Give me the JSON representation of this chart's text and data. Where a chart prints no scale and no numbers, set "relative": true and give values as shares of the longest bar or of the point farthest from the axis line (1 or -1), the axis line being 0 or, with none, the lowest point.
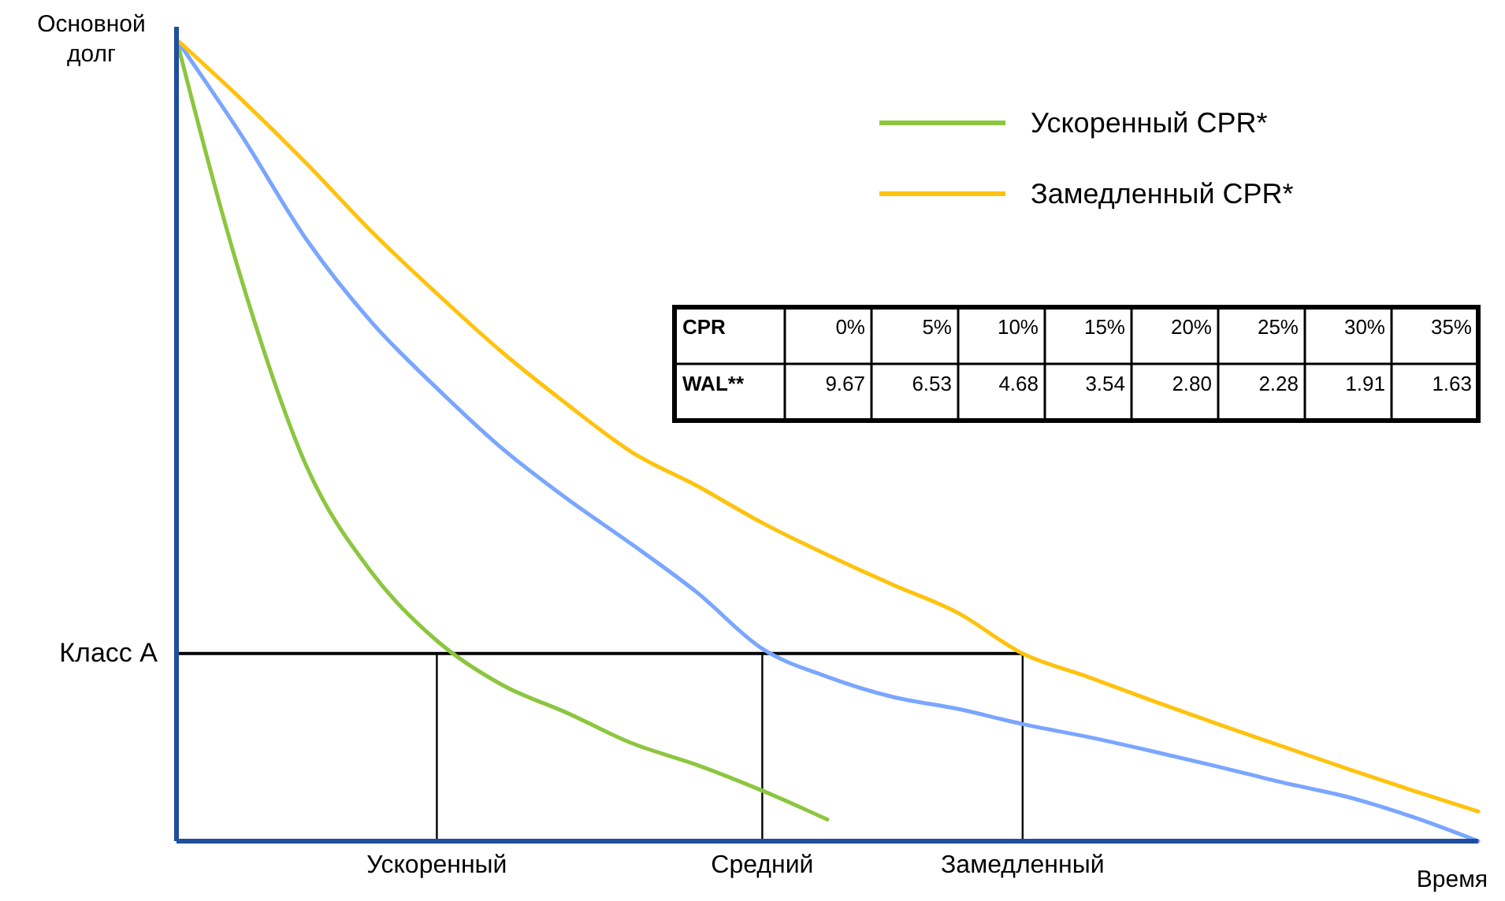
{
  "chart_data": {
    "type": "line",
    "relative": true,
    "xlabel": "Время",
    "ylabel": "Основной долг",
    "categories": [
      null,
      null,
      null,
      null,
      "Ускоренный",
      null,
      null,
      null,
      null,
      "Средний",
      null,
      null,
      null,
      "Замедленный",
      null,
      null,
      null,
      null,
      null,
      null,
      null
    ],
    "legend": "top right",
    "grid": false,
    "ref_lines": [
      {
        "axis": "y",
        "value": 0.234,
        "label": "Класс А",
        "color": "#000000"
      },
      {
        "axis": "x",
        "value": "Ускоренный",
        "color": "#000000"
      },
      {
        "axis": "x",
        "value": "Средний",
        "color": "#000000"
      },
      {
        "axis": "x",
        "value": "Замедленный",
        "color": "#000000"
      }
    ],
    "annotations": [
      "CPR",
      "0%",
      "5%",
      "10%",
      "15%",
      "20%",
      "25%",
      "30%",
      "35%",
      "WAL**",
      "9.67",
      "6.53",
      "4.68",
      "3.54",
      "2.80",
      "2.28",
      "1.91",
      "1.63"
    ],
    "series": [
      {
        "name": "Ускоренный CPR*",
        "color": "#8cc63f",
        "values": [
          1,
          0.7,
          0.467,
          0.335,
          0.25,
          0.195,
          0.16,
          0.122,
          0.095,
          0.063,
          0.027,
          null,
          null,
          null,
          null,
          null,
          null,
          null,
          null,
          null,
          null
        ]
      },
      {
        "color": "#7aa6ff",
        "values": [
          1,
          0.88,
          0.75,
          0.647,
          0.565,
          0.49,
          0.427,
          0.37,
          0.31,
          0.24,
          0.205,
          0.18,
          0.165,
          0.146,
          0.13,
          0.112,
          0.093,
          0.073,
          0.055,
          0.03,
          0
        ]
      },
      {
        "name": "Замедленный CPR*",
        "color": "#ffc20e",
        "values": [
          1,
          0.925,
          0.845,
          0.76,
          0.683,
          0.61,
          0.545,
          0.485,
          0.443,
          0.397,
          0.357,
          0.32,
          0.285,
          0.234,
          0.205,
          0.175,
          0.146,
          0.118,
          0.09,
          0.063,
          0.037
        ]
      }
    ]
  }
}
